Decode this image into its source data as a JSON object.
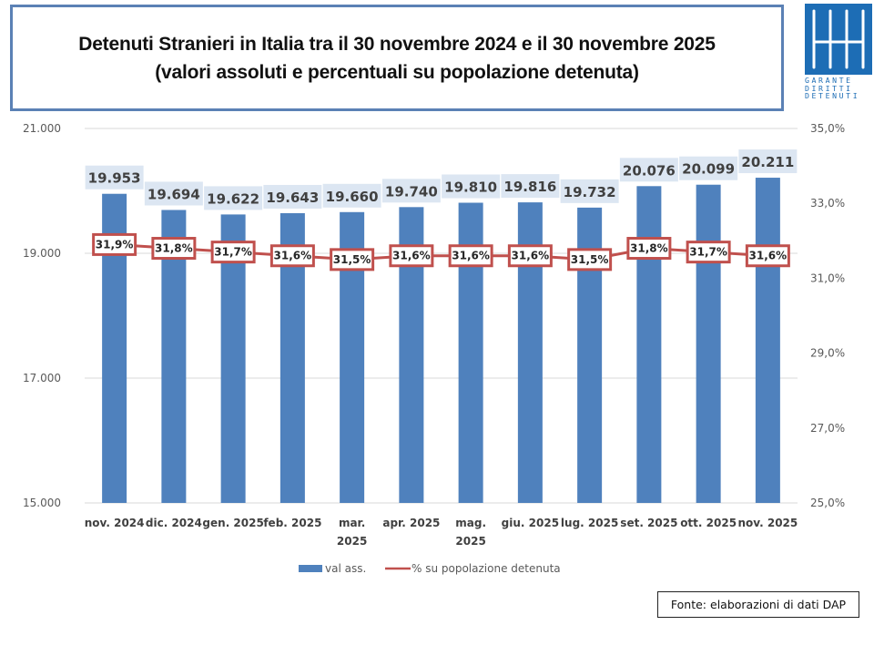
{
  "title": {
    "line1": "Detenuti Stranieri in Italia tra il 30 novembre 2024 e il 30 novembre 2025",
    "line2": "(valori assoluti e percentuali su popolazione detenuta)"
  },
  "logo": {
    "icon": "garante-logo-icon",
    "lines": [
      "GARANTE",
      "DIRITTI",
      "DETENUTI"
    ],
    "color": "#1d6db5"
  },
  "source": "Fonte: elaborazioni di dati DAP",
  "chart_data": {
    "type": "bar",
    "title": "Detenuti Stranieri in Italia tra il 30 novembre 2024 e il 30 novembre 2025 (valori assoluti e percentuali su popolazione detenuta)",
    "categories": [
      [
        "nov. 2024"
      ],
      [
        "dic. 2024"
      ],
      [
        "gen. 2025"
      ],
      [
        "feb. 2025"
      ],
      [
        "mar.",
        "2025"
      ],
      [
        "apr. 2025"
      ],
      [
        "mag.",
        "2025"
      ],
      [
        "giu. 2025"
      ],
      [
        "lug. 2025"
      ],
      [
        "set. 2025"
      ],
      [
        "ott. 2025"
      ],
      [
        "nov. 2025"
      ]
    ],
    "series": [
      {
        "name": "val ass.",
        "type": "bar",
        "axis": "left",
        "color": "#4f81bd",
        "values": [
          19953,
          19694,
          19622,
          19643,
          19660,
          19740,
          19810,
          19816,
          19732,
          20076,
          20099,
          20211
        ],
        "labels": [
          "19.953",
          "19.694",
          "19.622",
          "19.643",
          "19.660",
          "19.740",
          "19.810",
          "19.816",
          "19.732",
          "20.076",
          "20.099",
          "20.211"
        ]
      },
      {
        "name": "% su popolazione detenuta",
        "type": "line",
        "axis": "right",
        "color": "#c0504d",
        "values": [
          31.9,
          31.8,
          31.7,
          31.6,
          31.5,
          31.6,
          31.6,
          31.6,
          31.5,
          31.8,
          31.7,
          31.6
        ],
        "labels": [
          "31,9%",
          "31,8%",
          "31,7%",
          "31,6%",
          "31,5%",
          "31,6%",
          "31,6%",
          "31,6%",
          "31,5%",
          "31,8%",
          "31,7%",
          "31,6%"
        ]
      }
    ],
    "y_left": {
      "lim": [
        15000,
        21000
      ],
      "ticks": [
        15000,
        17000,
        19000,
        21000
      ],
      "tick_labels": [
        "15.000",
        "17.000",
        "19.000",
        "21.000"
      ]
    },
    "y_right": {
      "lim": [
        25,
        35
      ],
      "ticks": [
        25,
        27,
        29,
        31,
        33,
        35
      ],
      "tick_labels": [
        "25,0%",
        "27,0%",
        "29,0%",
        "31,0%",
        "33,0%",
        "35,0%"
      ]
    },
    "xlabel": "",
    "ylabel": "",
    "grid": true,
    "legend": {
      "position": "bottom",
      "entries": [
        "val ass.",
        "% su popolazione detenuta"
      ]
    },
    "label_bg": "#dce6f2"
  }
}
